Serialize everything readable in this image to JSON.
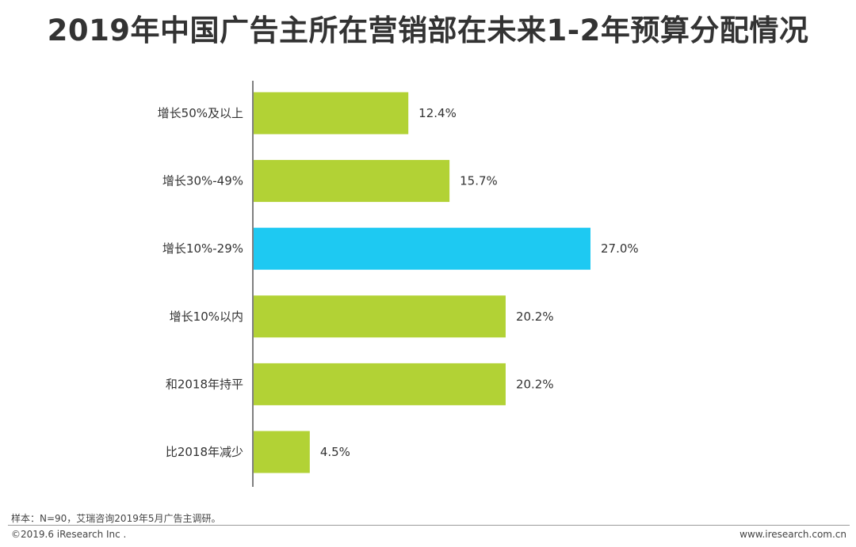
{
  "title": "2019年中国广告主所在营销部在未来1-2年预算分配情况",
  "note": "样本：N=90，艾瑞咨询2019年5月广告主调研。",
  "copyright": "©2019.6 iResearch Inc .",
  "website": "www.iresearch.com.cn",
  "colors": {
    "bar": "#b2d235",
    "highlight": "#1ec9f2",
    "axis": "#555555",
    "text": "#333333"
  },
  "chart_data": {
    "type": "bar",
    "orientation": "horizontal",
    "categories": [
      "增长50%及以上",
      "增长30%-49%",
      "增长10%-29%",
      "增长10%以内",
      "和2018年持平",
      "比2018年减少"
    ],
    "values": [
      12.4,
      15.7,
      27.0,
      20.2,
      20.2,
      4.5
    ],
    "value_labels": [
      "12.4%",
      "15.7%",
      "27.0%",
      "20.2%",
      "20.2%",
      "4.5%"
    ],
    "highlight_index": 2,
    "unit": "%",
    "xlim": [
      0,
      27
    ],
    "grid": false,
    "legend": "none"
  }
}
